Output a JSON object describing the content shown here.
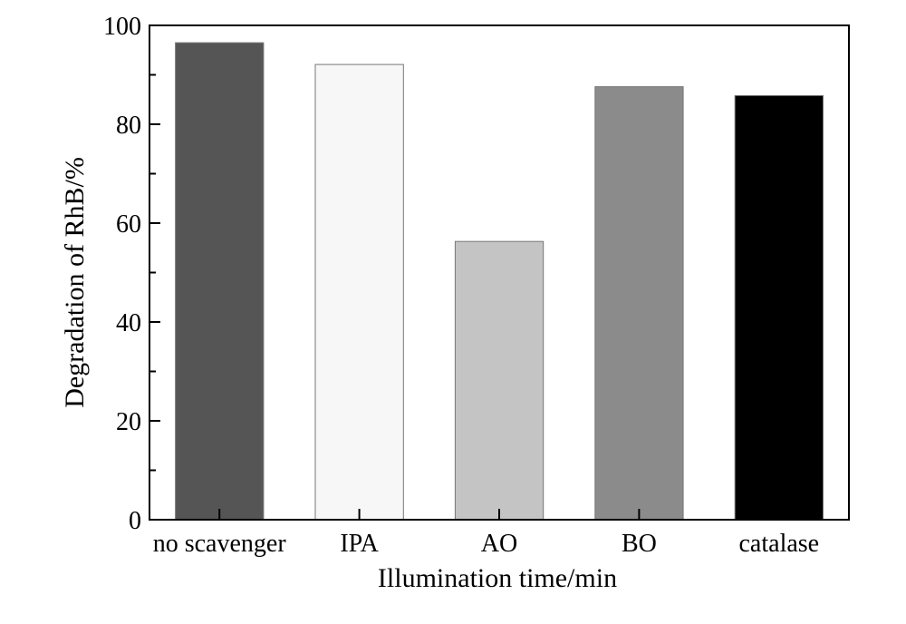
{
  "chart_data": {
    "type": "bar",
    "title": "",
    "xlabel": "Illumination time/min",
    "ylabel": "Degradation of RhB/%",
    "categories": [
      "no scavenger",
      "IPA",
      "AO",
      "BO",
      "catalase"
    ],
    "values": [
      96.5,
      92.1,
      56.3,
      87.6,
      85.8
    ],
    "ylim": [
      0,
      100
    ],
    "yticks": [
      0,
      20,
      40,
      60,
      80,
      100
    ],
    "ytick_labels": [
      "0",
      "20",
      "40",
      "60",
      "80",
      "100"
    ],
    "grid": false,
    "legend": "none",
    "bar_colors": [
      "#555555",
      "#f7f7f7",
      "#c4c4c4",
      "#8b8b8b",
      "#000000"
    ],
    "bar_edge_color": "#777777",
    "axis_color": "#000000"
  }
}
